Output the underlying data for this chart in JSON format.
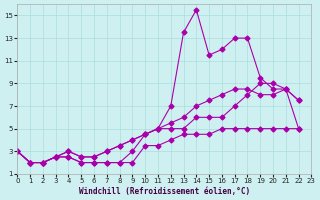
{
  "xlabel": "Windchill (Refroidissement éolien,°C)",
  "ylabel": "",
  "bg_color": "#cff0f0",
  "line_color": "#aa00aa",
  "grid_color": "#aadddd",
  "xlim": [
    0,
    23
  ],
  "ylim": [
    1,
    16
  ],
  "xticks": [
    0,
    1,
    2,
    3,
    4,
    5,
    6,
    7,
    8,
    9,
    10,
    11,
    12,
    13,
    14,
    15,
    16,
    17,
    18,
    19,
    20,
    21,
    22,
    23
  ],
  "yticks": [
    1,
    3,
    5,
    7,
    9,
    11,
    13,
    15
  ],
  "series": [
    [
      3,
      2,
      2,
      2.5,
      2.5,
      2,
      2,
      2,
      2,
      2,
      3.5,
      3.5,
      4,
      4.5,
      4.5,
      4.5,
      5,
      5,
      5,
      5,
      5,
      5,
      5
    ],
    [
      3,
      2,
      2,
      2.5,
      2.5,
      2,
      2,
      2,
      2,
      3,
      4.5,
      5,
      7,
      13.5,
      15.5,
      11.5,
      12,
      13,
      13,
      9.5,
      8.5,
      8.5,
      7.5
    ],
    [
      3,
      2,
      2,
      2.5,
      3,
      2.5,
      2.5,
      3,
      3.5,
      4,
      4.5,
      5,
      5,
      5,
      6,
      6,
      6,
      7,
      8,
      9,
      9,
      8.5,
      7.5
    ],
    [
      3,
      2,
      2,
      2.5,
      3,
      2.5,
      2.5,
      3,
      3.5,
      4,
      4.5,
      5,
      5.5,
      6,
      7,
      7.5,
      8,
      8.5,
      8.5,
      8,
      8,
      8.5,
      5
    ]
  ],
  "x_start": 0
}
